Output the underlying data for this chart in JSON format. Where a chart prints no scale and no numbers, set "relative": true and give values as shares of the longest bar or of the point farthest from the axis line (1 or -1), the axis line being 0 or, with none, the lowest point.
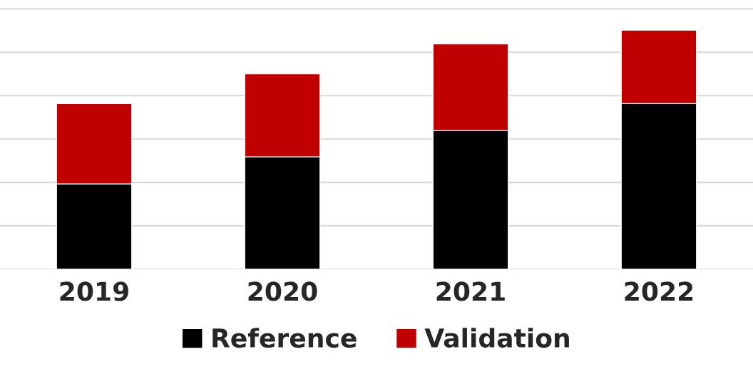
{
  "chart_data": {
    "type": "bar",
    "relative": true,
    "stacked": true,
    "grid": "y",
    "legend": "bottom",
    "categories": [
      "2019",
      "2020",
      "2021",
      "2022"
    ],
    "series": [
      {
        "name": "Reference",
        "color": "#000000",
        "values": [
          0.357,
          0.47,
          0.58,
          0.693
        ]
      },
      {
        "name": "Validation",
        "color": "#c00000",
        "values": [
          0.336,
          0.348,
          0.363,
          0.307
        ]
      }
    ]
  }
}
